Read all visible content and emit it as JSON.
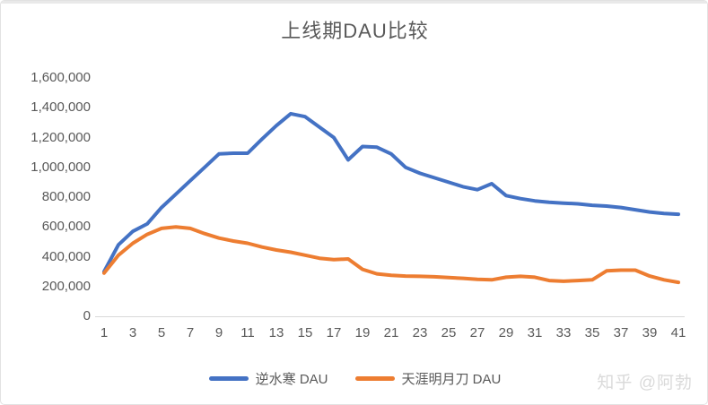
{
  "title": "上线期DAU比较",
  "watermark": "知乎 @阿勃",
  "colors": {
    "series1": "#4472C4",
    "series2": "#ED7D31",
    "axis_text": "#595959",
    "axis_line": "#D9D9D9",
    "title_text": "#595959"
  },
  "legend": [
    {
      "label": "逆水寒 DAU",
      "color": "#4472C4"
    },
    {
      "label": "天涯明月刀 DAU",
      "color": "#ED7D31"
    }
  ],
  "chart_data": {
    "type": "line",
    "title": "上线期DAU比较",
    "xlabel": "",
    "ylabel": "",
    "ylim": [
      0,
      1600000
    ],
    "y_tick_step": 200000,
    "grid": false,
    "legend_position": "bottom",
    "x": [
      1,
      2,
      3,
      4,
      5,
      6,
      7,
      8,
      9,
      10,
      11,
      12,
      13,
      14,
      15,
      16,
      17,
      18,
      19,
      20,
      21,
      22,
      23,
      24,
      25,
      26,
      27,
      28,
      29,
      30,
      31,
      32,
      33,
      34,
      35,
      36,
      37,
      38,
      39,
      40,
      41
    ],
    "x_tick_labels": [
      "1",
      "3",
      "5",
      "7",
      "9",
      "11",
      "13",
      "15",
      "17",
      "19",
      "21",
      "23",
      "25",
      "27",
      "29",
      "31",
      "33",
      "35",
      "37",
      "39",
      "41"
    ],
    "y_tick_labels": [
      "1,600,000",
      "1,400,000",
      "1,200,000",
      "1,000,000",
      "800,000",
      "600,000",
      "400,000",
      "200,000",
      "0"
    ],
    "series": [
      {
        "name": "逆水寒 DAU",
        "color": "#4472C4",
        "values": [
          300000,
          480000,
          570000,
          620000,
          730000,
          820000,
          910000,
          1000000,
          1090000,
          1095000,
          1095000,
          1190000,
          1280000,
          1360000,
          1340000,
          1270000,
          1200000,
          1050000,
          1140000,
          1135000,
          1090000,
          1000000,
          960000,
          930000,
          900000,
          870000,
          850000,
          890000,
          810000,
          790000,
          775000,
          765000,
          760000,
          755000,
          745000,
          740000,
          730000,
          715000,
          700000,
          690000,
          685000
        ]
      },
      {
        "name": "天涯明月刀 DAU",
        "color": "#ED7D31",
        "values": [
          290000,
          410000,
          490000,
          550000,
          590000,
          600000,
          590000,
          555000,
          525000,
          505000,
          490000,
          465000,
          445000,
          430000,
          410000,
          390000,
          380000,
          385000,
          315000,
          285000,
          275000,
          270000,
          268000,
          265000,
          260000,
          255000,
          248000,
          245000,
          262000,
          268000,
          262000,
          240000,
          235000,
          240000,
          245000,
          305000,
          310000,
          310000,
          270000,
          245000,
          228000
        ]
      }
    ]
  }
}
